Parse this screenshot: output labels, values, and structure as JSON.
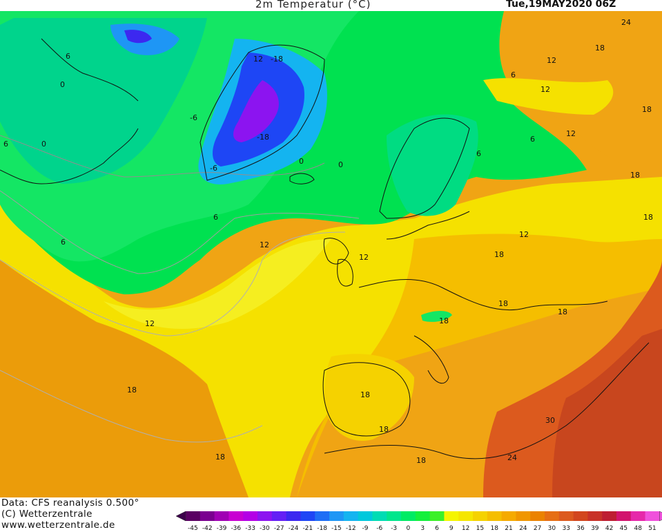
{
  "header": {
    "title": "2m  Temperatur  (°C)",
    "date": "Tue,19MAY2020  06Z"
  },
  "footer": {
    "data_source": "Data: CFS reanalysis 0.500°",
    "copyright": "(C) Wetterzentrale",
    "website": "www.wetterzentrale.de"
  },
  "colorbar": {
    "ticks": [
      "-45",
      "-42",
      "-39",
      "-36",
      "-33",
      "-30",
      "-27",
      "-24",
      "-21",
      "-18",
      "-15",
      "-12",
      "-9",
      "-6",
      "-3",
      "0",
      "3",
      "6",
      "9",
      "12",
      "15",
      "18",
      "21",
      "24",
      "27",
      "30",
      "33",
      "36",
      "39",
      "42",
      "45",
      "48",
      "51"
    ],
    "colors": [
      "#5a0062",
      "#7a0090",
      "#a000b4",
      "#c800d2",
      "#b400e6",
      "#8c14f0",
      "#6420f5",
      "#3c28f0",
      "#1e46f5",
      "#1e6ef5",
      "#1e96f5",
      "#14b4f0",
      "#00c8dc",
      "#00dcb4",
      "#00e68c",
      "#00eb64",
      "#14f03c",
      "#3cf028",
      "#f5f500",
      "#f5e600",
      "#f5d200",
      "#f5be00",
      "#f5aa00",
      "#f09600",
      "#eb8200",
      "#e66e14",
      "#dc5a1e",
      "#d2461e",
      "#c83228",
      "#be1e32",
      "#d2146e",
      "#e628aa",
      "#f050dc"
    ],
    "left_arrow_color": "#3c004b",
    "right_arrow_color": "#f050dc"
  },
  "contour_labels": [
    {
      "text": "24"
    },
    {
      "text": "18"
    },
    {
      "text": "12"
    },
    {
      "text": "12"
    },
    {
      "text": "18"
    },
    {
      "text": "12"
    },
    {
      "text": "6"
    },
    {
      "text": "18"
    },
    {
      "text": "6"
    },
    {
      "text": "6"
    },
    {
      "text": "0"
    },
    {
      "text": "-6"
    },
    {
      "text": "0"
    },
    {
      "text": "12"
    },
    {
      "text": "-18"
    },
    {
      "text": "-6"
    },
    {
      "text": "0"
    },
    {
      "text": "-18"
    },
    {
      "text": "6"
    },
    {
      "text": "6"
    },
    {
      "text": "0"
    },
    {
      "text": "6"
    },
    {
      "text": "6"
    },
    {
      "text": "12"
    },
    {
      "text": "12"
    },
    {
      "text": "18"
    },
    {
      "text": "18"
    },
    {
      "text": "12"
    },
    {
      "text": "18"
    },
    {
      "text": "18"
    },
    {
      "text": "18"
    },
    {
      "text": "18"
    },
    {
      "text": "18"
    },
    {
      "text": "18"
    },
    {
      "text": "18"
    },
    {
      "text": "18"
    },
    {
      "text": "30"
    },
    {
      "text": "24"
    },
    {
      "text": "12"
    }
  ]
}
